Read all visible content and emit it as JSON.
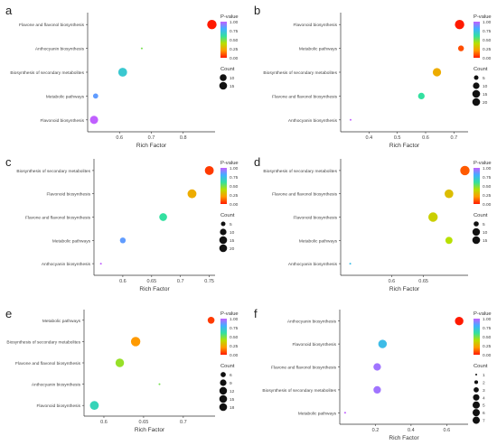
{
  "colors": {
    "panel_bg": "#ffffff",
    "axis": "#333333",
    "text": "#444444",
    "gradient": [
      "#ff1a00",
      "#ff9a00",
      "#b8e000",
      "#33e0a0",
      "#40b0ff",
      "#c060ff"
    ],
    "dot_stroke": "#777777"
  },
  "chart_data": [
    {
      "panel_letter": "a",
      "type": "scatter",
      "xlabel": "Rich Factor",
      "ylabel": "",
      "xlim": [
        0.5,
        0.9
      ],
      "xticks": [
        0.6,
        0.7,
        0.8
      ],
      "categories": [
        "Flavone and flavonol biosynthesis",
        "Anthocyanin biosynthesis",
        "Biosynthesis of secondary metabolites",
        "Metabolic pathways",
        "Flavonoid biosynthesis"
      ],
      "points": [
        {
          "category": "Flavone and flavonol biosynthesis",
          "x": 0.89,
          "pvalue": 0.0,
          "count": 18
        },
        {
          "category": "Anthocyanin biosynthesis",
          "x": 0.67,
          "pvalue": 0.5,
          "count": 1
        },
        {
          "category": "Biosynthesis of secondary metabolites",
          "x": 0.61,
          "pvalue": 0.7,
          "count": 16
        },
        {
          "category": "Metabolic pathways",
          "x": 0.525,
          "pvalue": 0.85,
          "count": 6
        },
        {
          "category": "Flavonoid biosynthesis",
          "x": 0.52,
          "pvalue": 1.0,
          "count": 14
        }
      ],
      "legend": {
        "color_title": "P-value",
        "color_ticks": [
          "1.00",
          "0.75",
          "0.50",
          "0.25",
          "0.00"
        ],
        "size_title": "Count",
        "size_ticks": [
          "10",
          "15"
        ],
        "size_values": [
          10,
          15
        ]
      },
      "count_range": [
        1,
        18
      ]
    },
    {
      "panel_letter": "b",
      "type": "scatter",
      "xlabel": "Rich Factor",
      "ylabel": "",
      "xlim": [
        0.3,
        0.75
      ],
      "xticks": [
        0.4,
        0.5,
        0.6,
        0.7
      ],
      "categories": [
        "Flavonoid biosynthesis",
        "Metabolic pathways",
        "Biosynthesis of secondary metabolites",
        "Flavone and flavonol biosynthesis",
        "Anthocyanin biosynthesis"
      ],
      "points": [
        {
          "category": "Flavonoid biosynthesis",
          "x": 0.72,
          "pvalue": 0.0,
          "count": 20
        },
        {
          "category": "Metabolic pathways",
          "x": 0.725,
          "pvalue": 0.08,
          "count": 8
        },
        {
          "category": "Biosynthesis of secondary metabolites",
          "x": 0.64,
          "pvalue": 0.25,
          "count": 16
        },
        {
          "category": "Flavone and flavonol biosynthesis",
          "x": 0.585,
          "pvalue": 0.6,
          "count": 10
        },
        {
          "category": "Anthocyanin biosynthesis",
          "x": 0.335,
          "pvalue": 1.0,
          "count": 1
        }
      ],
      "legend": {
        "color_title": "P-value",
        "color_ticks": [
          "1.00",
          "0.75",
          "0.50",
          "0.25",
          "0.00"
        ],
        "size_title": "Count",
        "size_ticks": [
          "5",
          "10",
          "15",
          "20"
        ],
        "size_values": [
          5,
          10,
          15,
          20
        ]
      },
      "count_range": [
        1,
        20
      ]
    },
    {
      "panel_letter": "c",
      "type": "scatter",
      "xlabel": "Rich Factor",
      "ylabel": "",
      "xlim": [
        0.55,
        0.76
      ],
      "xticks": [
        0.6,
        0.65,
        0.7,
        0.75
      ],
      "categories": [
        "Biosynthesis of secondary metabolites",
        "Flavonoid biosynthesis",
        "Flavone and flavonol biosynthesis",
        "Metabolic pathways",
        "Anthocyanin biosynthesis"
      ],
      "points": [
        {
          "category": "Biosynthesis of secondary metabolites",
          "x": 0.75,
          "pvalue": 0.05,
          "count": 18
        },
        {
          "category": "Flavonoid biosynthesis",
          "x": 0.72,
          "pvalue": 0.25,
          "count": 18
        },
        {
          "category": "Flavone and flavonol biosynthesis",
          "x": 0.67,
          "pvalue": 0.6,
          "count": 14
        },
        {
          "category": "Metabolic pathways",
          "x": 0.6,
          "pvalue": 0.85,
          "count": 8
        },
        {
          "category": "Anthocyanin biosynthesis",
          "x": 0.562,
          "pvalue": 1.0,
          "count": 1
        }
      ],
      "legend": {
        "color_title": "P-value",
        "color_ticks": [
          "1.00",
          "0.75",
          "0.50",
          "0.25",
          "0.00"
        ],
        "size_title": "Count",
        "size_ticks": [
          "5",
          "10",
          "15",
          "20"
        ],
        "size_values": [
          5,
          10,
          15,
          20
        ]
      },
      "count_range": [
        1,
        20
      ]
    },
    {
      "panel_letter": "d",
      "type": "scatter",
      "xlabel": "Rich Factor",
      "ylabel": "",
      "xlim": [
        0.52,
        0.72
      ],
      "xticks": [
        0.6,
        0.65
      ],
      "categories": [
        "Biosynthesis of secondary metabolites",
        "Flavone and flavonol biosynthesis",
        "Flavonoid biosynthesis",
        "Metabolic pathways",
        "Anthocyanin biosynthesis"
      ],
      "points": [
        {
          "category": "Biosynthesis of secondary metabolites",
          "x": 0.715,
          "pvalue": 0.1,
          "count": 15
        },
        {
          "category": "Flavone and flavonol biosynthesis",
          "x": 0.69,
          "pvalue": 0.3,
          "count": 13
        },
        {
          "category": "Flavonoid biosynthesis",
          "x": 0.665,
          "pvalue": 0.35,
          "count": 15
        },
        {
          "category": "Metabolic pathways",
          "x": 0.69,
          "pvalue": 0.4,
          "count": 9
        },
        {
          "category": "Anthocyanin biosynthesis",
          "x": 0.535,
          "pvalue": 0.75,
          "count": 1
        }
      ],
      "legend": {
        "color_title": "P-value",
        "color_ticks": [
          "1.00",
          "0.75",
          "0.50",
          "0.25",
          "0.00"
        ],
        "size_title": "Count",
        "size_ticks": [
          "5",
          "10",
          "15"
        ],
        "size_values": [
          5,
          10,
          15
        ]
      },
      "count_range": [
        1,
        15
      ]
    },
    {
      "panel_letter": "e",
      "type": "scatter",
      "xlabel": "Rich Factor",
      "ylabel": "",
      "xlim": [
        0.575,
        0.74
      ],
      "xticks": [
        0.6,
        0.65,
        0.7
      ],
      "categories": [
        "Metabolic pathways",
        "Biosynthesis of secondary metabolites",
        "Flavone and flavonol biosynthesis",
        "Anthocyanin biosynthesis",
        "Flavonoid biosynthesis"
      ],
      "points": [
        {
          "category": "Metabolic pathways",
          "x": 0.735,
          "pvalue": 0.05,
          "count": 10
        },
        {
          "category": "Biosynthesis of secondary metabolites",
          "x": 0.64,
          "pvalue": 0.2,
          "count": 18
        },
        {
          "category": "Flavone and flavonol biosynthesis",
          "x": 0.62,
          "pvalue": 0.45,
          "count": 15
        },
        {
          "category": "Anthocyanin biosynthesis",
          "x": 0.67,
          "pvalue": 0.5,
          "count": 1
        },
        {
          "category": "Flavonoid biosynthesis",
          "x": 0.588,
          "pvalue": 0.65,
          "count": 16
        }
      ],
      "legend": {
        "color_title": "P-value",
        "color_ticks": [
          "1.00",
          "0.75",
          "0.50",
          "0.25",
          "0.00"
        ],
        "size_title": "Count",
        "size_ticks": [
          "6",
          "9",
          "12",
          "15",
          "18"
        ],
        "size_values": [
          6,
          9,
          12,
          15,
          18
        ]
      },
      "count_range": [
        1,
        18
      ]
    },
    {
      "panel_letter": "f",
      "type": "scatter",
      "xlabel": "Rich Factor",
      "ylabel": "",
      "xlim": [
        0.0,
        0.72
      ],
      "xticks": [
        0.2,
        0.4,
        0.6
      ],
      "categories": [
        "Anthocyanin biosynthesis",
        "Flavonoid biosynthesis",
        "Flavone and flavonol biosynthesis",
        "Biosynthesis of secondary metabolites",
        "Metabolic pathways"
      ],
      "points": [
        {
          "category": "Anthocyanin biosynthesis",
          "x": 0.67,
          "pvalue": 0.0,
          "count": 6
        },
        {
          "category": "Flavonoid biosynthesis",
          "x": 0.24,
          "pvalue": 0.75,
          "count": 6
        },
        {
          "category": "Flavone and flavonol biosynthesis",
          "x": 0.21,
          "pvalue": 0.95,
          "count": 5
        },
        {
          "category": "Biosynthesis of secondary metabolites",
          "x": 0.21,
          "pvalue": 0.95,
          "count": 5
        },
        {
          "category": "Metabolic pathways",
          "x": 0.03,
          "pvalue": 1.0,
          "count": 1
        }
      ],
      "legend": {
        "color_title": "P-value",
        "color_ticks": [
          "1.00",
          "0.75",
          "0.50",
          "0.25",
          "0.00"
        ],
        "size_title": "Count",
        "size_ticks": [
          "1",
          "2",
          "3",
          "4",
          "5",
          "6",
          "7"
        ],
        "size_values": [
          1,
          2,
          3,
          4,
          5,
          6,
          7
        ]
      },
      "count_range": [
        1,
        7
      ]
    }
  ]
}
